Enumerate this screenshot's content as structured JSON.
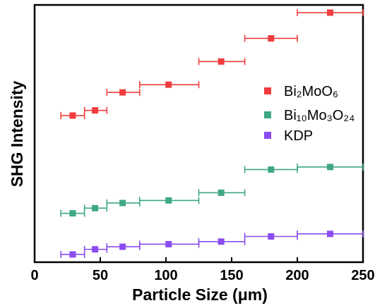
{
  "chart_data": {
    "type": "scatter",
    "xlabel": "Particle Size (μm)",
    "ylabel": "SHG Intensity",
    "xlim": [
      0,
      250
    ],
    "xticks": [
      "0",
      "50",
      "100",
      "150",
      "200",
      "250"
    ],
    "grid": false,
    "yticks_shown": false,
    "legend_position": "right",
    "series": [
      {
        "name": "Bi₂MoO₆",
        "color": "#f03c3c",
        "points": [
          {
            "x": 29,
            "xmin": 20,
            "xmax": 38,
            "y": 0.57
          },
          {
            "x": 46,
            "xmin": 38,
            "xmax": 55,
            "y": 0.59
          },
          {
            "x": 67,
            "xmin": 55,
            "xmax": 80,
            "y": 0.66
          },
          {
            "x": 102,
            "xmin": 80,
            "xmax": 125,
            "y": 0.69
          },
          {
            "x": 142,
            "xmin": 125,
            "xmax": 160,
            "y": 0.78
          },
          {
            "x": 180,
            "xmin": 160,
            "xmax": 200,
            "y": 0.87
          },
          {
            "x": 225,
            "xmin": 200,
            "xmax": 250,
            "y": 0.97
          }
        ]
      },
      {
        "name": "Bi₁₀Mo₃O₂₄",
        "color": "#3fa882",
        "points": [
          {
            "x": 29,
            "xmin": 20,
            "xmax": 38,
            "y": 0.19
          },
          {
            "x": 46,
            "xmin": 38,
            "xmax": 55,
            "y": 0.21
          },
          {
            "x": 67,
            "xmin": 55,
            "xmax": 80,
            "y": 0.23
          },
          {
            "x": 102,
            "xmin": 80,
            "xmax": 125,
            "y": 0.24
          },
          {
            "x": 142,
            "xmin": 125,
            "xmax": 160,
            "y": 0.27
          },
          {
            "x": 180,
            "xmin": 160,
            "xmax": 200,
            "y": 0.36
          },
          {
            "x": 225,
            "xmin": 200,
            "xmax": 250,
            "y": 0.37
          }
        ]
      },
      {
        "name": "KDP",
        "color": "#8a4cf0",
        "points": [
          {
            "x": 29,
            "xmin": 20,
            "xmax": 38,
            "y": 0.03
          },
          {
            "x": 46,
            "xmin": 38,
            "xmax": 55,
            "y": 0.05
          },
          {
            "x": 67,
            "xmin": 55,
            "xmax": 80,
            "y": 0.06
          },
          {
            "x": 102,
            "xmin": 80,
            "xmax": 125,
            "y": 0.07
          },
          {
            "x": 142,
            "xmin": 125,
            "xmax": 160,
            "y": 0.08
          },
          {
            "x": 180,
            "xmin": 160,
            "xmax": 200,
            "y": 0.1
          },
          {
            "x": 225,
            "xmin": 200,
            "xmax": 250,
            "y": 0.11
          }
        ]
      }
    ]
  }
}
